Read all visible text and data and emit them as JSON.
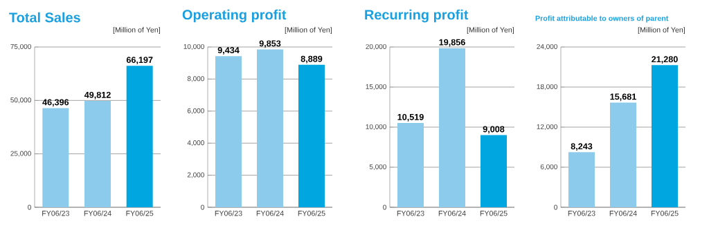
{
  "chart_data": [
    {
      "type": "bar",
      "title": "Total Sales",
      "ylabel": "[Million of Yen]",
      "categories": [
        "FY06/23",
        "FY06/24",
        "FY06/25"
      ],
      "values": [
        46396,
        49812,
        66197
      ],
      "value_labels": [
        "46,396",
        "49,812",
        "66,197"
      ],
      "colors": [
        "#8dcbed",
        "#8dcbed",
        "#00a6e0"
      ],
      "ylim": [
        0,
        75000
      ],
      "yticks": [
        0,
        {
          "value": 25000,
          "label": "25,000"
        },
        {
          "value": 50000,
          "label": "50,000"
        },
        {
          "value": 75000,
          "label": "75,000"
        }
      ],
      "grid": "y"
    },
    {
      "type": "bar",
      "title": "Operating profit",
      "ylabel": "[Million of Yen]",
      "categories": [
        "FY06/23",
        "FY06/24",
        "FY06/25"
      ],
      "values": [
        9434,
        9853,
        8889
      ],
      "value_labels": [
        "9,434",
        "9,853",
        "8,889"
      ],
      "colors": [
        "#8dcbed",
        "#8dcbed",
        "#00a6e0"
      ],
      "ylim": [
        0,
        10000
      ],
      "yticks": [
        0,
        {
          "value": 2000,
          "label": "2,000"
        },
        {
          "value": 4000,
          "label": "4,000"
        },
        {
          "value": 6000,
          "label": "6,000"
        },
        {
          "value": 8000,
          "label": "8,000"
        },
        {
          "value": 10000,
          "label": "10,000"
        }
      ],
      "grid": "y"
    },
    {
      "type": "bar",
      "title": "Recurring profit",
      "ylabel": "[Million of Yen]",
      "categories": [
        "FY06/23",
        "FY06/24",
        "FY06/25"
      ],
      "values": [
        10519,
        19856,
        9008
      ],
      "value_labels": [
        "10,519",
        "19,856",
        "9,008"
      ],
      "colors": [
        "#8dcbed",
        "#8dcbed",
        "#00a6e0"
      ],
      "ylim": [
        0,
        20000
      ],
      "yticks": [
        0,
        {
          "value": 5000,
          "label": "5,000"
        },
        {
          "value": 10000,
          "label": "10,000"
        },
        {
          "value": 15000,
          "label": "15,000"
        },
        {
          "value": 20000,
          "label": "20,000"
        }
      ],
      "grid": "y"
    },
    {
      "type": "bar",
      "title": "Profit attributable to owners of parent",
      "ylabel": "[Million of Yen]",
      "categories": [
        "FY06/23",
        "FY06/24",
        "FY06/25"
      ],
      "values": [
        8243,
        15681,
        21280
      ],
      "value_labels": [
        "8,243",
        "15,681",
        "21,280"
      ],
      "colors": [
        "#8dcbed",
        "#8dcbed",
        "#00a6e0"
      ],
      "ylim": [
        0,
        24000
      ],
      "yticks": [
        0,
        {
          "value": 6000,
          "label": "6,000"
        },
        {
          "value": 12000,
          "label": "12,000"
        },
        {
          "value": 18000,
          "label": "18,000"
        },
        {
          "value": 24000,
          "label": "24,000"
        }
      ],
      "grid": "y"
    }
  ]
}
